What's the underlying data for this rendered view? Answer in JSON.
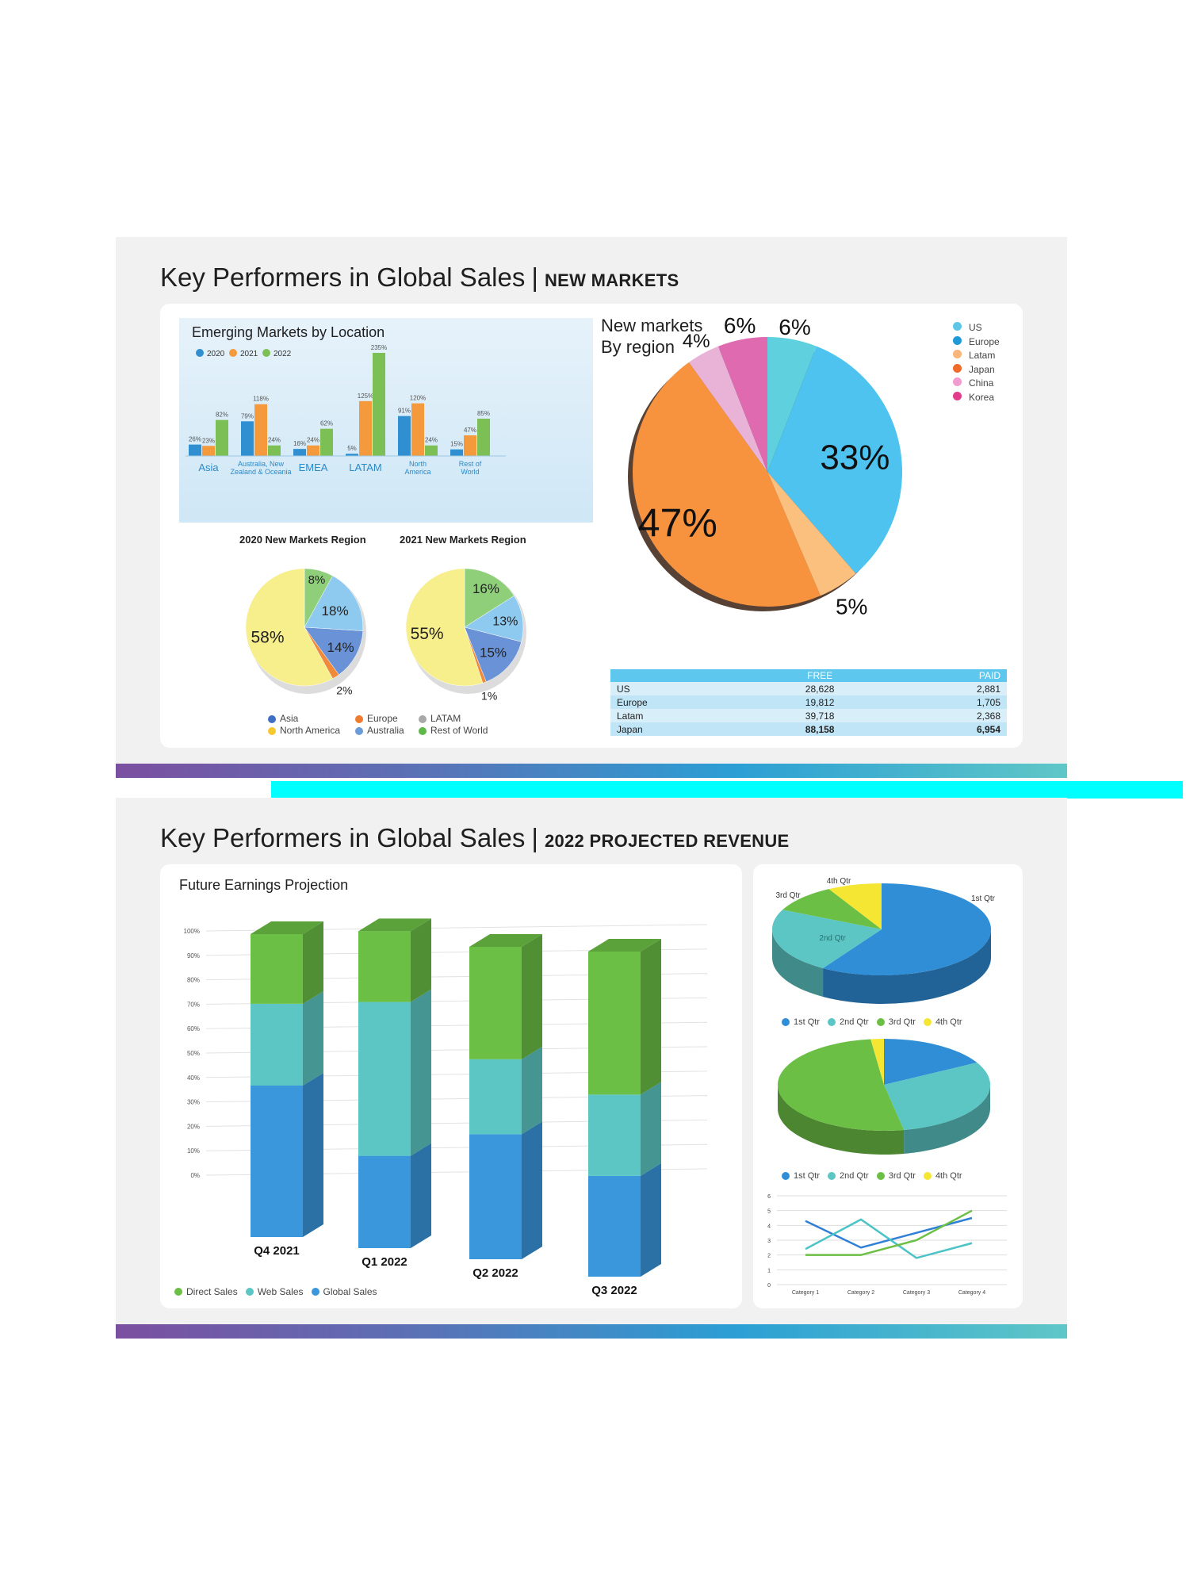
{
  "slide1": {
    "title": "Key Performers in Global Sales",
    "separator": "|",
    "subtitle": "NEW MARKETS"
  },
  "slide2": {
    "title": "Key Performers in Global Sales",
    "separator": "|",
    "subtitle": "2022 PROJECTED REVENUE"
  },
  "emerging": {
    "title": "Emerging Markets by Location"
  },
  "pie2020": {
    "title": "2020 New Markets Region"
  },
  "pie2021": {
    "title": "2021 New Markets Region"
  },
  "pies_legend": [
    "Asia",
    "Europe",
    "LATAM",
    "North America",
    "Australia",
    "Rest of World"
  ],
  "bignie": {
    "title_line1": "New markets",
    "title_line2": "By region"
  },
  "table": {
    "headers": [
      "",
      "FREE",
      "PAID"
    ],
    "rows": [
      [
        "US",
        "28,628",
        "2,881"
      ],
      [
        "Europe",
        "19,812",
        "1,705"
      ],
      [
        "Latam",
        "39,718",
        "2,368"
      ],
      [
        "Japan",
        "88,158",
        "6,954"
      ]
    ]
  },
  "future": {
    "title": "Future Earnings Projection"
  },
  "chart_data": [
    {
      "type": "bar",
      "title": "Emerging Markets by Location",
      "categories": [
        "Asia",
        "Australia, New Zealand & Oceania",
        "EMEA",
        "LATAM",
        "North America",
        "Rest of World"
      ],
      "series": [
        {
          "name": "2020",
          "values": [
            26,
            79,
            16,
            5,
            91,
            15
          ],
          "labels": [
            "26%",
            "79%",
            "16%",
            "5%",
            "91%",
            "15%"
          ]
        },
        {
          "name": "2021",
          "values": [
            23,
            118,
            24,
            125,
            120,
            47
          ],
          "labels": [
            "23%",
            "118%",
            "24%",
            "125%",
            "120%",
            "47%"
          ]
        },
        {
          "name": "2022",
          "values": [
            82,
            24,
            62,
            235,
            24,
            85
          ],
          "labels": [
            "82%",
            "24%",
            "62%",
            "235%",
            "24%",
            "85%"
          ]
        }
      ],
      "colors": [
        "#2f8fd0",
        "#f59a3c",
        "#7cbf54"
      ]
    },
    {
      "type": "pie",
      "title": "2020 New Markets Region",
      "slices": [
        {
          "name": "Rest of World",
          "value": 8,
          "label": "8%",
          "color": "#8fcf7a"
        },
        {
          "name": "North America",
          "value": 18,
          "label": "18%",
          "color": "#8ec9ef"
        },
        {
          "name": "Australia",
          "value": 14,
          "label": "14%",
          "color": "#6a92d6"
        },
        {
          "name": "Europe",
          "value": 2,
          "label": "2%",
          "color": "#f08a3a"
        },
        {
          "name": "Asia",
          "value": 58,
          "label": "58%",
          "color": "#f7ee8c"
        }
      ]
    },
    {
      "type": "pie",
      "title": "2021 New Markets Region",
      "slices": [
        {
          "name": "Rest of World",
          "value": 16,
          "label": "16%",
          "color": "#8fcf7a"
        },
        {
          "name": "North America",
          "value": 13,
          "label": "13%",
          "color": "#8ec9ef"
        },
        {
          "name": "Australia",
          "value": 15,
          "label": "15%",
          "color": "#6a92d6"
        },
        {
          "name": "Europe",
          "value": 1,
          "label": "1%",
          "color": "#f08a3a"
        },
        {
          "name": "Asia",
          "value": 55,
          "label": "55%",
          "color": "#f7ee8c"
        }
      ]
    },
    {
      "type": "pie",
      "title": "New markets By region",
      "legend": [
        "US",
        "Europe",
        "Latam",
        "Japan",
        "China",
        "Korea"
      ],
      "legend_colors": [
        "#5ec7e8",
        "#1f9ad8",
        "#f9b57a",
        "#f06a2a",
        "#f29bd0",
        "#e23d8c"
      ],
      "slices": [
        {
          "name": "US",
          "value": 6,
          "label": "6%",
          "color": "#5ed0de"
        },
        {
          "name": "Europe",
          "value": 33,
          "label": "33%",
          "color": "#4fc3f0"
        },
        {
          "name": "Latam",
          "value": 5,
          "label": "5%",
          "color": "#fbc07e"
        },
        {
          "name": "Japan",
          "value": 47,
          "label": "47%",
          "color": "#f7923e"
        },
        {
          "name": "China",
          "value": 4,
          "label": "4%",
          "color": "#e9b3d8"
        },
        {
          "name": "Korea",
          "value": 6,
          "label": "6%",
          "color": "#e06ab0"
        }
      ]
    },
    {
      "type": "bar",
      "stacked": true,
      "title": "Future Earnings Projection",
      "categories": [
        "Q4 2021",
        "Q1 2022",
        "Q2 2022",
        "Q3 2022"
      ],
      "y_ticks": [
        "0%",
        "10%",
        "20%",
        "30%",
        "40%",
        "50%",
        "60%",
        "70%",
        "80%",
        "90%",
        "100%"
      ],
      "series": [
        {
          "name": "Global Sales",
          "values": [
            50,
            30,
            40,
            31
          ]
        },
        {
          "name": "Web Sales",
          "values": [
            27,
            50,
            24,
            25
          ]
        },
        {
          "name": "Direct Sales",
          "values": [
            23,
            23,
            36,
            44
          ]
        }
      ],
      "colors": [
        "#3a97dc",
        "#5cc6c4",
        "#6cbf45"
      ]
    },
    {
      "type": "pie",
      "title": "",
      "legend": [
        "1st Qtr",
        "2nd Qtr",
        "3rd Qtr",
        "4th Qtr"
      ],
      "slice_labels": [
        "1st Qtr",
        "2nd Qtr",
        "3rd Qtr",
        "4th Qtr"
      ],
      "values": [
        59,
        23,
        10,
        8
      ],
      "colors": [
        "#2f8ed6",
        "#5cc6c4",
        "#6cbf45",
        "#f5e634"
      ]
    },
    {
      "type": "pie",
      "title": "",
      "legend": [
        "1st Qtr",
        "2nd Qtr",
        "3rd Qtr",
        "4th Qtr"
      ],
      "values": [
        17,
        30,
        51,
        2
      ],
      "colors": [
        "#2f8ed6",
        "#5cc6c4",
        "#6cbf45",
        "#f5e634"
      ]
    },
    {
      "type": "line",
      "title": "",
      "categories": [
        "Category 1",
        "Category 2",
        "Category 3",
        "Category 4"
      ],
      "y_ticks": [
        "0",
        "1",
        "2",
        "3",
        "4",
        "5",
        "6"
      ],
      "ylim": [
        0,
        6
      ],
      "series": [
        {
          "values": [
            4.3,
            2.5,
            3.5,
            4.5
          ],
          "color": "#2f7fd6"
        },
        {
          "values": [
            2.4,
            4.4,
            1.8,
            2.8
          ],
          "color": "#4cc3c6"
        },
        {
          "values": [
            2.0,
            2.0,
            3.0,
            5.0
          ],
          "color": "#6cbf45"
        }
      ]
    }
  ]
}
